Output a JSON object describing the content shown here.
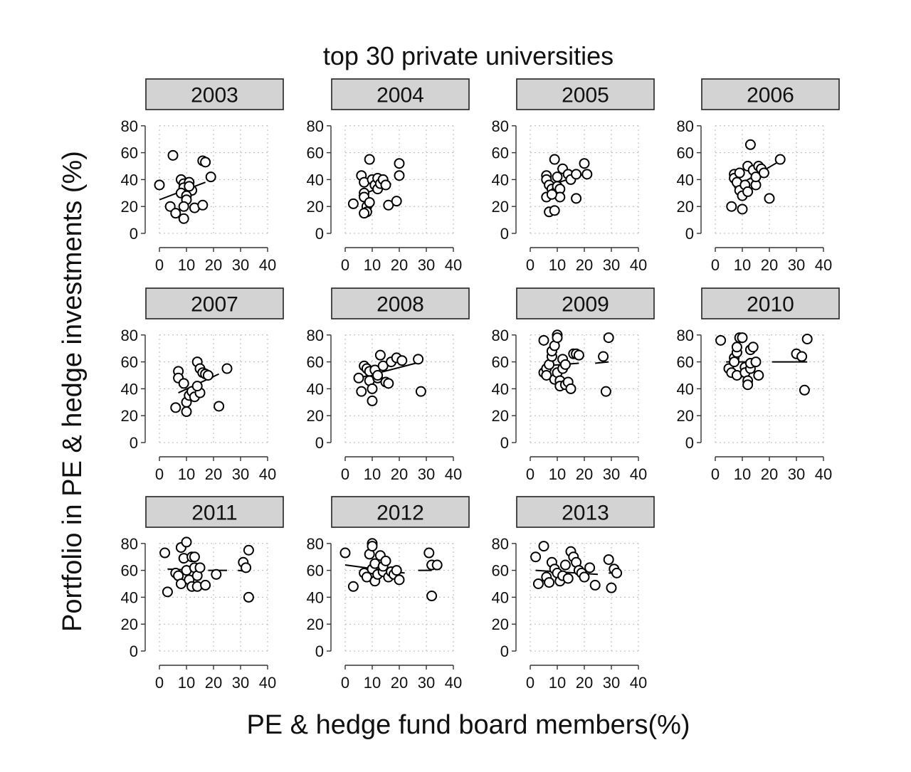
{
  "chart_data": {
    "type": "scatter",
    "title": "top 30 private universities",
    "xlabel": "PE & hedge fund board members(%)",
    "ylabel": "Portfolio in PE & hedge investments (%)",
    "xlim": [
      0,
      40
    ],
    "ylim": [
      0,
      80
    ],
    "xticks": [
      0,
      10,
      20,
      30,
      40
    ],
    "yticks": [
      0,
      20,
      40,
      60,
      80
    ],
    "x_tick_labels": [
      "0",
      "10",
      "20",
      "30",
      "40"
    ],
    "y_tick_labels": [
      "0",
      "20",
      "40",
      "60",
      "80"
    ],
    "panels": [
      {
        "label": "2003",
        "points": [
          [
            0,
            36
          ],
          [
            5,
            58
          ],
          [
            8,
            40
          ],
          [
            9,
            37
          ],
          [
            9,
            34
          ],
          [
            11,
            38
          ],
          [
            12,
            32
          ],
          [
            8,
            30
          ],
          [
            10,
            28
          ],
          [
            10,
            25
          ],
          [
            4,
            20
          ],
          [
            6,
            15
          ],
          [
            9,
            20
          ],
          [
            9,
            11
          ],
          [
            13,
            19
          ],
          [
            16,
            54
          ],
          [
            17,
            53
          ],
          [
            19,
            42
          ],
          [
            16,
            21
          ],
          [
            11,
            35
          ]
        ],
        "fit": [
          [
            0,
            25
          ],
          [
            17,
            38
          ]
        ]
      },
      {
        "label": "2004",
        "points": [
          [
            3,
            22
          ],
          [
            6,
            43
          ],
          [
            7,
            38
          ],
          [
            7,
            30
          ],
          [
            7,
            27
          ],
          [
            8,
            20
          ],
          [
            8,
            16
          ],
          [
            9,
            23
          ],
          [
            9,
            55
          ],
          [
            10,
            40
          ],
          [
            11,
            36
          ],
          [
            12,
            41
          ],
          [
            12,
            33
          ],
          [
            13,
            37
          ],
          [
            14,
            40
          ],
          [
            15,
            36
          ],
          [
            16,
            21
          ],
          [
            19,
            24
          ],
          [
            20,
            43
          ],
          [
            20,
            52
          ],
          [
            7,
            15
          ]
        ],
        "fit": [
          [
            5,
            28
          ],
          [
            17,
            37
          ]
        ]
      },
      {
        "label": "2005",
        "points": [
          [
            6,
            43
          ],
          [
            6,
            40
          ],
          [
            7,
            36
          ],
          [
            8,
            33
          ],
          [
            9,
            30
          ],
          [
            9,
            55
          ],
          [
            10,
            42
          ],
          [
            10,
            35
          ],
          [
            11,
            33
          ],
          [
            11,
            27
          ],
          [
            12,
            48
          ],
          [
            7,
            16
          ],
          [
            9,
            17
          ],
          [
            14,
            44
          ],
          [
            15,
            40
          ],
          [
            17,
            44
          ],
          [
            17,
            26
          ],
          [
            20,
            52
          ],
          [
            21,
            44
          ],
          [
            6,
            27
          ],
          [
            8,
            29
          ]
        ],
        "fit": [
          [
            6,
            35
          ],
          [
            20,
            44
          ]
        ]
      },
      {
        "label": "2006",
        "points": [
          [
            6,
            20
          ],
          [
            7,
            44
          ],
          [
            7,
            41
          ],
          [
            8,
            38
          ],
          [
            9,
            45
          ],
          [
            9,
            32
          ],
          [
            10,
            28
          ],
          [
            10,
            18
          ],
          [
            11,
            36
          ],
          [
            12,
            31
          ],
          [
            12,
            50
          ],
          [
            13,
            66
          ],
          [
            14,
            47
          ],
          [
            15,
            36
          ],
          [
            15,
            42
          ],
          [
            16,
            50
          ],
          [
            17,
            48
          ],
          [
            18,
            45
          ],
          [
            20,
            26
          ],
          [
            24,
            55
          ]
        ],
        "fit": [
          [
            7,
            34
          ],
          [
            24,
            54
          ]
        ]
      },
      {
        "label": "2007",
        "points": [
          [
            6,
            26
          ],
          [
            7,
            53
          ],
          [
            7,
            48
          ],
          [
            9,
            44
          ],
          [
            10,
            23
          ],
          [
            10,
            30
          ],
          [
            11,
            35
          ],
          [
            12,
            38
          ],
          [
            13,
            34
          ],
          [
            14,
            60
          ],
          [
            15,
            55
          ],
          [
            15,
            37
          ],
          [
            16,
            52
          ],
          [
            17,
            51
          ],
          [
            18,
            50
          ],
          [
            22,
            27
          ],
          [
            25,
            55
          ],
          [
            14,
            42
          ]
        ],
        "fit": [
          [
            7,
            37
          ],
          [
            22,
            51
          ]
        ]
      },
      {
        "label": "2008",
        "points": [
          [
            5,
            48
          ],
          [
            6,
            38
          ],
          [
            7,
            57
          ],
          [
            8,
            55
          ],
          [
            9,
            53
          ],
          [
            9,
            46
          ],
          [
            10,
            40
          ],
          [
            10,
            31
          ],
          [
            11,
            54
          ],
          [
            12,
            48
          ],
          [
            12,
            50
          ],
          [
            13,
            65
          ],
          [
            14,
            57
          ],
          [
            15,
            45
          ],
          [
            16,
            44
          ],
          [
            17,
            60
          ],
          [
            19,
            63
          ],
          [
            21,
            61
          ],
          [
            27,
            62
          ],
          [
            28,
            38
          ]
        ],
        "fit": [
          [
            5,
            48
          ],
          [
            28,
            60
          ]
        ]
      },
      {
        "label": "2009",
        "points": [
          [
            5,
            76
          ],
          [
            5,
            52
          ],
          [
            6,
            55
          ],
          [
            6,
            50
          ],
          [
            7,
            58
          ],
          [
            8,
            64
          ],
          [
            8,
            68
          ],
          [
            9,
            72
          ],
          [
            9,
            47
          ],
          [
            10,
            80
          ],
          [
            10,
            78
          ],
          [
            10,
            52
          ],
          [
            11,
            46
          ],
          [
            11,
            42
          ],
          [
            12,
            55
          ],
          [
            12,
            62
          ],
          [
            13,
            58
          ],
          [
            13,
            43
          ],
          [
            14,
            45
          ],
          [
            15,
            40
          ],
          [
            16,
            66
          ],
          [
            17,
            66
          ],
          [
            18,
            65
          ],
          [
            27,
            64
          ],
          [
            28,
            38
          ],
          [
            29,
            78
          ]
        ],
        "fit": [
          [
            5,
            57
          ],
          [
            18,
            59
          ],
          [
            24,
            59
          ],
          [
            29,
            60
          ]
        ]
      },
      {
        "label": "2010",
        "points": [
          [
            2,
            76
          ],
          [
            5,
            55
          ],
          [
            6,
            52
          ],
          [
            7,
            63
          ],
          [
            7,
            60
          ],
          [
            8,
            50
          ],
          [
            8,
            67
          ],
          [
            8,
            71
          ],
          [
            9,
            78
          ],
          [
            10,
            78
          ],
          [
            11,
            56
          ],
          [
            11,
            52
          ],
          [
            12,
            46
          ],
          [
            12,
            43
          ],
          [
            13,
            55
          ],
          [
            13,
            59
          ],
          [
            13,
            69
          ],
          [
            14,
            71
          ],
          [
            15,
            60
          ],
          [
            16,
            50
          ],
          [
            30,
            66
          ],
          [
            32,
            64
          ],
          [
            33,
            39
          ],
          [
            34,
            77
          ]
        ],
        "fit": [
          [
            4,
            60
          ],
          [
            16,
            60
          ],
          [
            21,
            60
          ],
          [
            34,
            60
          ]
        ]
      },
      {
        "label": "2011",
        "points": [
          [
            2,
            73
          ],
          [
            3,
            44
          ],
          [
            6,
            58
          ],
          [
            7,
            56
          ],
          [
            8,
            50
          ],
          [
            8,
            77
          ],
          [
            9,
            69
          ],
          [
            10,
            81
          ],
          [
            10,
            60
          ],
          [
            11,
            53
          ],
          [
            12,
            48
          ],
          [
            12,
            70
          ],
          [
            13,
            70
          ],
          [
            13,
            62
          ],
          [
            14,
            56
          ],
          [
            14,
            48
          ],
          [
            15,
            62
          ],
          [
            17,
            49
          ],
          [
            21,
            57
          ],
          [
            31,
            66
          ],
          [
            32,
            62
          ],
          [
            33,
            75
          ],
          [
            33,
            40
          ]
        ],
        "fit": [
          [
            3,
            61
          ],
          [
            13,
            60
          ],
          [
            18,
            60
          ],
          [
            25,
            60
          ],
          [
            29,
            60
          ],
          [
            33,
            59
          ]
        ]
      },
      {
        "label": "2012",
        "points": [
          [
            0,
            73
          ],
          [
            3,
            48
          ],
          [
            7,
            58
          ],
          [
            8,
            55
          ],
          [
            9,
            72
          ],
          [
            10,
            80
          ],
          [
            10,
            78
          ],
          [
            10,
            61
          ],
          [
            11,
            65
          ],
          [
            11,
            52
          ],
          [
            12,
            57
          ],
          [
            13,
            71
          ],
          [
            14,
            59
          ],
          [
            14,
            63
          ],
          [
            15,
            67
          ],
          [
            16,
            55
          ],
          [
            17,
            59
          ],
          [
            18,
            57
          ],
          [
            19,
            60
          ],
          [
            20,
            53
          ],
          [
            31,
            73
          ],
          [
            32,
            41
          ],
          [
            32,
            64
          ],
          [
            34,
            64
          ]
        ],
        "fit": [
          [
            0,
            64
          ],
          [
            22,
            58
          ],
          [
            27,
            60
          ],
          [
            32,
            60
          ]
        ]
      },
      {
        "label": "2013",
        "points": [
          [
            2,
            70
          ],
          [
            3,
            50
          ],
          [
            5,
            78
          ],
          [
            6,
            55
          ],
          [
            7,
            51
          ],
          [
            8,
            66
          ],
          [
            9,
            61
          ],
          [
            10,
            58
          ],
          [
            11,
            52
          ],
          [
            12,
            56
          ],
          [
            13,
            64
          ],
          [
            14,
            54
          ],
          [
            15,
            74
          ],
          [
            16,
            70
          ],
          [
            17,
            66
          ],
          [
            18,
            60
          ],
          [
            19,
            58
          ],
          [
            20,
            55
          ],
          [
            22,
            62
          ],
          [
            24,
            49
          ],
          [
            29,
            68
          ],
          [
            30,
            47
          ],
          [
            31,
            61
          ],
          [
            32,
            58
          ]
        ],
        "fit": [
          [
            2,
            60
          ],
          [
            25,
            57
          ],
          [
            29,
            58
          ],
          [
            32,
            58
          ]
        ]
      }
    ]
  }
}
